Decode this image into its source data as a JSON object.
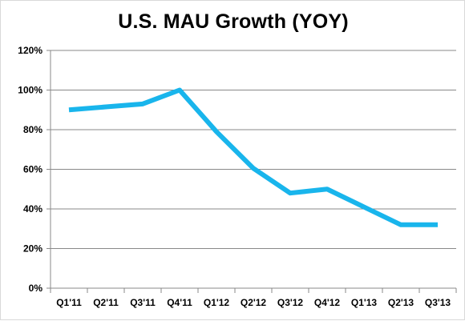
{
  "chart_data": {
    "type": "line",
    "title": "U.S. MAU Growth (YOY)",
    "xlabel": "",
    "ylabel": "",
    "categories": [
      "Q1'11",
      "Q2'11",
      "Q3'11",
      "Q4'11",
      "Q1'12",
      "Q2'12",
      "Q3'12",
      "Q4'12",
      "Q1'13",
      "Q2'13",
      "Q3'13"
    ],
    "series": [
      {
        "values": [
          90,
          91.5,
          93,
          100,
          79,
          60.5,
          48,
          50,
          41,
          32,
          32
        ]
      }
    ],
    "ylim": [
      0,
      120
    ],
    "yticks": [
      0,
      20,
      40,
      60,
      80,
      100,
      120
    ],
    "ytick_labels": [
      "0%",
      "20%",
      "40%",
      "60%",
      "80%",
      "100%",
      "120%"
    ],
    "grid": true,
    "legend": "none",
    "colors": {
      "line": "#19b5ec",
      "grid": "#898989",
      "axis": "#898989"
    }
  }
}
